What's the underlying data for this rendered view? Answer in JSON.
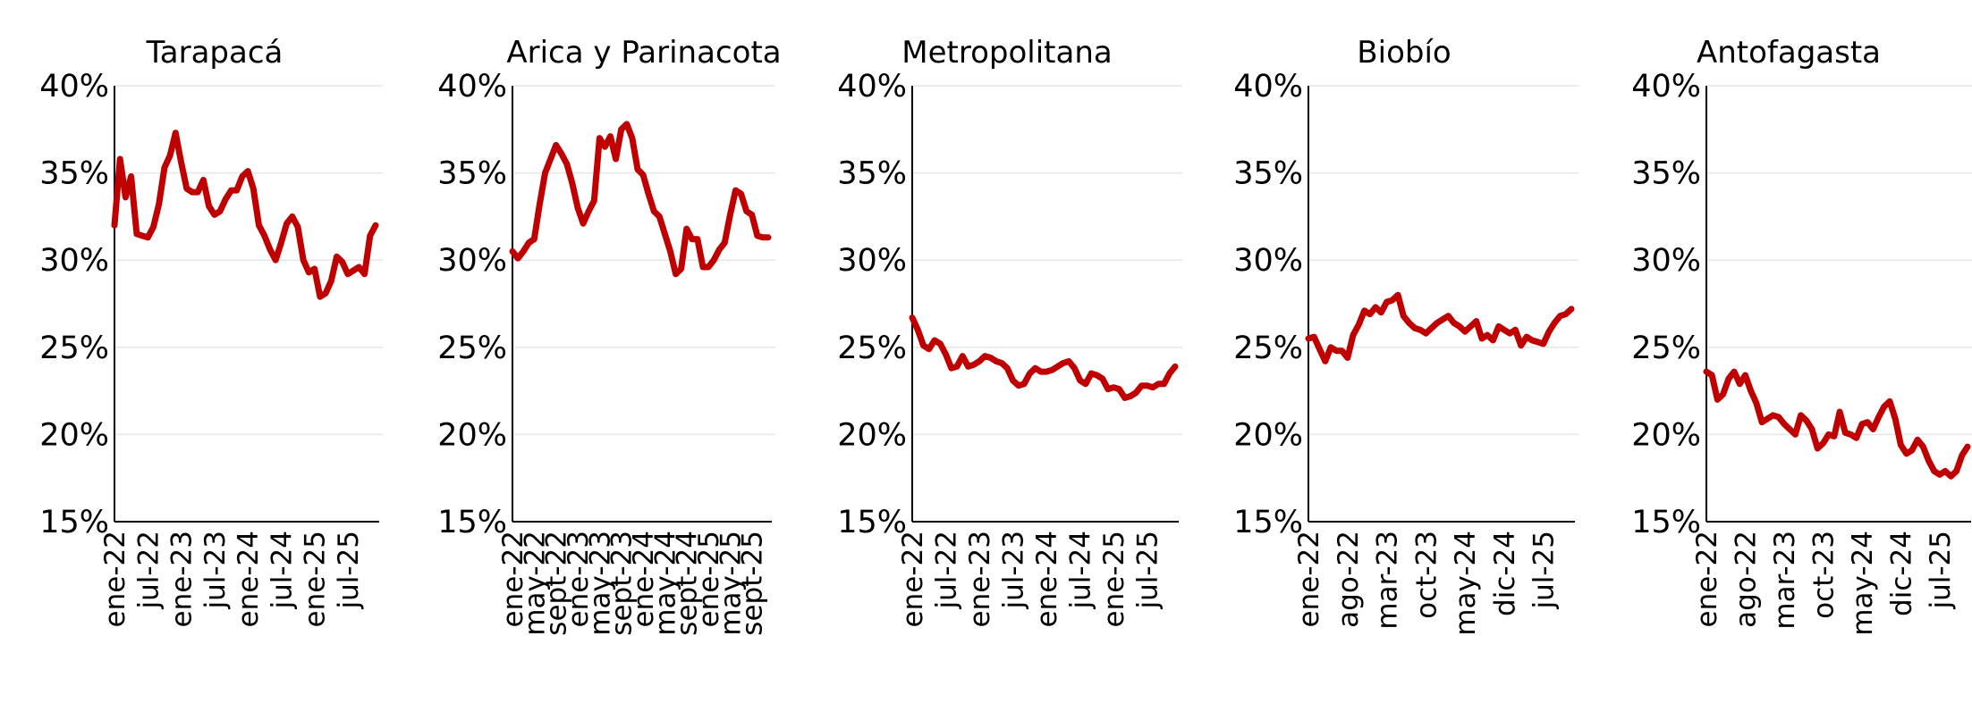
{
  "chart_data": [
    {
      "type": "line",
      "title": "Tarapacá",
      "ylim": [
        15,
        40
      ],
      "yticks": [
        "15%",
        "20%",
        "25%",
        "30%",
        "35%",
        "40%"
      ],
      "x_tick_labels": [
        "ene-22",
        "jul-22",
        "ene-23",
        "jul-23",
        "ene-24",
        "jul-24",
        "ene-25",
        "jul-25"
      ],
      "x_tick_index": [
        0,
        6,
        12,
        18,
        24,
        30,
        36,
        42
      ],
      "n_points": 48,
      "grid": true,
      "color": "#c00000",
      "values": [
        32.0,
        35.8,
        33.6,
        34.8,
        31.5,
        31.4,
        31.3,
        31.9,
        33.2,
        35.3,
        36.0,
        37.3,
        35.6,
        34.1,
        33.9,
        33.9,
        34.6,
        33.1,
        32.6,
        32.8,
        33.5,
        34.0,
        34.0,
        34.8,
        35.1,
        34.1,
        32.0,
        31.4,
        30.6,
        30.0,
        31.0,
        32.1,
        32.5,
        31.9,
        30.0,
        29.3,
        29.5,
        27.9,
        28.1,
        28.8,
        30.2,
        29.9,
        29.2,
        29.4,
        29.6,
        29.2,
        31.4,
        32.0
      ]
    },
    {
      "type": "line",
      "title": "Arica y Parinacota",
      "ylim": [
        15,
        40
      ],
      "yticks": [
        "15%",
        "20%",
        "25%",
        "30%",
        "35%",
        "40%"
      ],
      "x_tick_labels": [
        "ene-22",
        "may-22",
        "sept-22",
        "ene-23",
        "may-23",
        "sept-23",
        "ene-24",
        "may-24",
        "sept-24",
        "ene-25",
        "may-25",
        "sept-25"
      ],
      "x_tick_index": [
        0,
        4,
        8,
        12,
        16,
        20,
        24,
        28,
        32,
        36,
        40,
        44
      ],
      "n_points": 48,
      "grid": true,
      "color": "#c00000",
      "values": [
        30.5,
        30.1,
        30.5,
        31.0,
        31.2,
        33.2,
        35.0,
        35.8,
        36.6,
        36.1,
        35.5,
        34.4,
        33.0,
        32.1,
        32.8,
        33.4,
        37.0,
        36.5,
        37.1,
        35.8,
        37.5,
        37.8,
        37.0,
        35.2,
        34.9,
        33.8,
        32.8,
        32.5,
        31.5,
        30.5,
        29.2,
        29.5,
        31.8,
        31.2,
        31.2,
        29.6,
        29.6,
        30.0,
        30.6,
        31.0,
        32.6,
        34.0,
        33.8,
        32.8,
        32.6,
        31.4,
        31.3,
        31.3
      ]
    },
    {
      "type": "line",
      "title": "Metropolitana",
      "ylim": [
        15,
        40
      ],
      "yticks": [
        "15%",
        "20%",
        "25%",
        "30%",
        "35%",
        "40%"
      ],
      "x_tick_labels": [
        "ene-22",
        "jul-22",
        "ene-23",
        "jul-23",
        "ene-24",
        "jul-24",
        "ene-25",
        "jul-25"
      ],
      "x_tick_index": [
        0,
        6,
        12,
        18,
        24,
        30,
        36,
        42
      ],
      "n_points": 48,
      "grid": true,
      "color": "#c00000",
      "values": [
        26.7,
        26.0,
        25.1,
        24.9,
        25.4,
        25.2,
        24.6,
        23.8,
        23.9,
        24.5,
        23.9,
        24.0,
        24.2,
        24.5,
        24.4,
        24.2,
        24.1,
        23.8,
        23.1,
        22.8,
        22.9,
        23.5,
        23.8,
        23.6,
        23.6,
        23.7,
        23.9,
        24.1,
        24.2,
        23.8,
        23.1,
        22.9,
        23.5,
        23.4,
        23.2,
        22.6,
        22.7,
        22.6,
        22.1,
        22.2,
        22.4,
        22.8,
        22.8,
        22.7,
        22.9,
        22.9,
        23.5,
        23.9
      ]
    },
    {
      "type": "line",
      "title": "Biobío",
      "ylim": [
        15,
        40
      ],
      "yticks": [
        "15%",
        "20%",
        "25%",
        "30%",
        "35%",
        "40%"
      ],
      "x_tick_labels": [
        "ene-22",
        "ago-22",
        "mar-23",
        "oct-23",
        "may-24",
        "dic-24",
        "jul-25"
      ],
      "x_tick_index": [
        0,
        7,
        14,
        21,
        28,
        35,
        42
      ],
      "n_points": 48,
      "grid": true,
      "color": "#c00000",
      "values": [
        25.5,
        25.6,
        24.9,
        24.2,
        25.0,
        24.8,
        24.8,
        24.4,
        25.7,
        26.3,
        27.1,
        26.9,
        27.3,
        27.0,
        27.6,
        27.7,
        28.0,
        26.8,
        26.4,
        26.1,
        26.0,
        25.8,
        26.1,
        26.4,
        26.6,
        26.8,
        26.4,
        26.2,
        25.9,
        26.2,
        26.5,
        25.5,
        25.7,
        25.4,
        26.2,
        26.0,
        25.8,
        26.0,
        25.1,
        25.6,
        25.4,
        25.3,
        25.2,
        25.9,
        26.4,
        26.8,
        26.9,
        27.2
      ]
    },
    {
      "type": "line",
      "title": "Antofagasta",
      "ylim": [
        15,
        40
      ],
      "yticks": [
        "15%",
        "20%",
        "25%",
        "30%",
        "35%",
        "40%"
      ],
      "x_tick_labels": [
        "ene-22",
        "ago-22",
        "mar-23",
        "oct-23",
        "may-24",
        "dic-24",
        "jul-25"
      ],
      "x_tick_index": [
        0,
        7,
        14,
        21,
        28,
        35,
        42
      ],
      "n_points": 48,
      "grid": true,
      "color": "#c00000",
      "values": [
        23.6,
        23.4,
        22.0,
        22.3,
        23.2,
        23.6,
        22.9,
        23.4,
        22.5,
        21.8,
        20.7,
        20.9,
        21.1,
        21.0,
        20.6,
        20.3,
        20.0,
        21.1,
        20.8,
        20.3,
        19.2,
        19.5,
        20.0,
        19.9,
        21.3,
        20.1,
        20.0,
        19.8,
        20.6,
        20.7,
        20.3,
        21.0,
        21.6,
        21.9,
        20.9,
        19.4,
        18.9,
        19.1,
        19.7,
        19.3,
        18.5,
        17.9,
        17.7,
        17.9,
        17.6,
        17.9,
        18.8,
        19.3
      ]
    }
  ]
}
